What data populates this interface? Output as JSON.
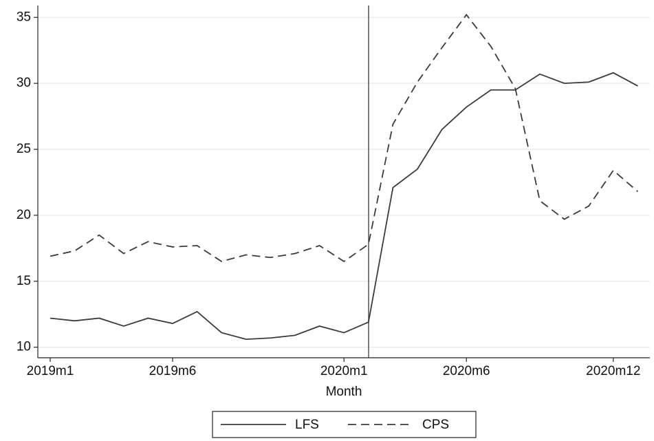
{
  "chart_data": {
    "type": "line",
    "x_label": "Month",
    "categories": [
      "2019m1",
      null,
      null,
      null,
      null,
      "2019m6",
      null,
      null,
      null,
      null,
      null,
      null,
      "2020m1",
      null,
      null,
      null,
      null,
      "2020m6",
      null,
      null,
      null,
      null,
      null,
      "2020m12",
      null
    ],
    "series": [
      {
        "name": "LFS",
        "color": "#3a3a3a",
        "dash": "solid",
        "values": [
          12.2,
          12.0,
          12.2,
          11.6,
          12.2,
          11.8,
          12.7,
          11.1,
          10.6,
          10.7,
          10.9,
          11.6,
          11.1,
          11.9,
          22.1,
          23.5,
          26.5,
          28.2,
          29.5,
          29.5,
          30.7,
          30.0,
          30.1,
          30.8,
          29.8
        ]
      },
      {
        "name": "CPS",
        "color": "#3a3a3a",
        "dash": "dashed",
        "values": [
          16.9,
          17.3,
          18.5,
          17.1,
          18.0,
          17.6,
          17.7,
          16.5,
          17.0,
          16.8,
          17.1,
          17.7,
          16.5,
          17.8,
          26.9,
          30.1,
          32.7,
          35.2,
          32.8,
          29.6,
          21.1,
          19.7,
          20.7,
          23.4,
          21.8
        ]
      }
    ],
    "ylim": [
      9.2,
      35.9
    ],
    "yticks": [
      10,
      15,
      20,
      25,
      30,
      35
    ],
    "grid": true,
    "legend": "bottom"
  }
}
